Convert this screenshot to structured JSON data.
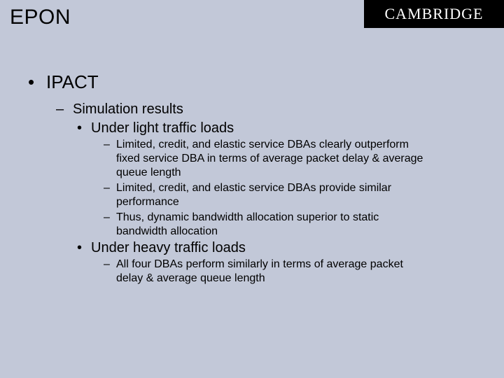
{
  "colors": {
    "background": "#c2c8d8",
    "text": "#000000",
    "brand_bg": "#000000",
    "brand_fg": "#ffffff"
  },
  "fonts": {
    "body_family": "Comic Sans MS",
    "brand_family": "Georgia serif",
    "title_size_pt": 30,
    "lvl1_size_pt": 26,
    "lvl2_size_pt": 20,
    "lvl3_size_pt": 20,
    "lvl4_size_pt": 16
  },
  "header": {
    "title": "EPON",
    "brand": "CAMBRIDGE"
  },
  "bullets": {
    "lvl1": "•",
    "lvl2_dash": "–",
    "lvl3_dot": "•",
    "lvl4_dash": "–"
  },
  "outline": {
    "lvl1_1": "IPACT",
    "lvl2_1": "Simulation results",
    "lvl3_1": "Under light traffic loads",
    "lvl4_1": "Limited, credit, and elastic service DBAs clearly outperform fixed service DBA in terms of average packet delay & average queue length",
    "lvl4_2": "Limited, credit, and elastic service DBAs provide similar performance",
    "lvl4_3": "Thus, dynamic bandwidth allocation superior to static bandwidth allocation",
    "lvl3_2": "Under heavy traffic loads",
    "lvl4_4": "All four DBAs perform similarly in terms of average packet delay & average queue length"
  }
}
